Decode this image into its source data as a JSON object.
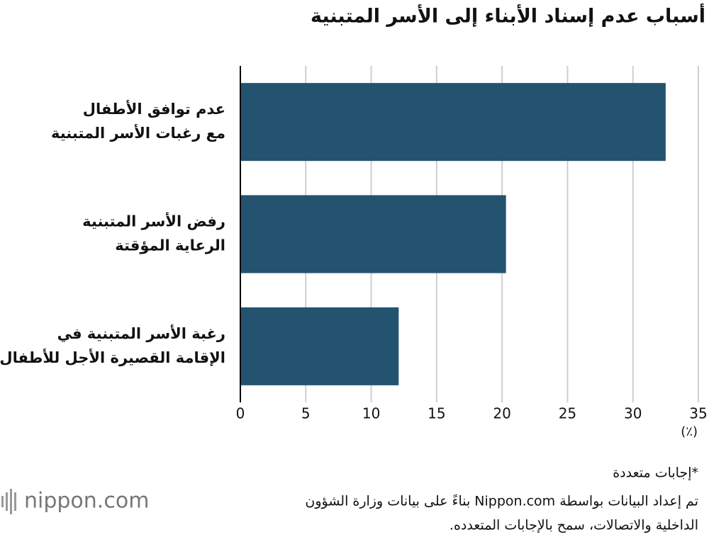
{
  "chart_data": {
    "type": "bar",
    "orientation": "horizontal",
    "title": "أسباب عدم إسناد الأبناء إلى الأسر المتبنية",
    "categories": [
      [
        "عدم توافق الأطفال",
        "مع رغبات الأسر المتبنية"
      ],
      [
        "رفض الأسر المتبنية",
        "الرعاية المؤقتة"
      ],
      [
        "رغبة الأسر المتبنية في",
        "الإقامة القصيرة الأجل للأطفال"
      ]
    ],
    "values": [
      32.5,
      20.3,
      12.1
    ],
    "color": "#24536f",
    "xlim": [
      0,
      35
    ],
    "xticks": [
      0,
      5,
      10,
      15,
      20,
      25,
      30,
      35
    ],
    "grid": true,
    "x_unit": "(٪)",
    "note": "*إجابات متعددة",
    "source": [
      "تم إعداد البيانات بواسطة Nippon.com بناءً على بيانات وزارة الشؤون",
      "الداخلية والاتصالات، سمح بالإجابات المتعدده."
    ],
    "logo": "nippon.com"
  }
}
